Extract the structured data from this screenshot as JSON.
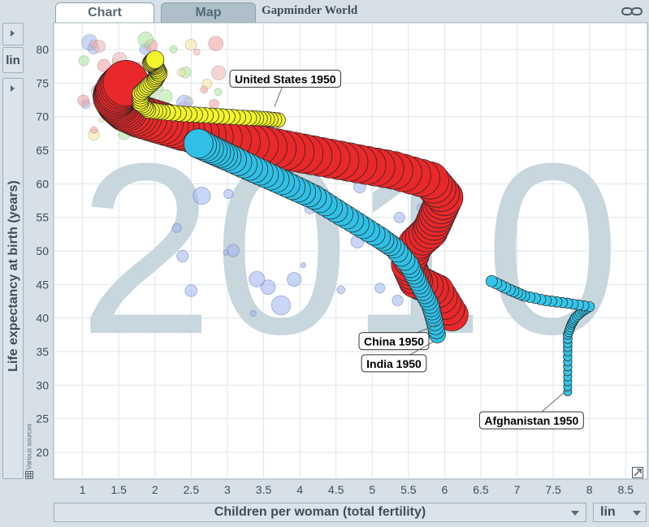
{
  "tabs": [
    {
      "label": "Chart",
      "active": true
    },
    {
      "label": "Map",
      "active": false
    }
  ],
  "app_title": "Gapminder World",
  "y_axis": {
    "title": "Life expectancy at birth (years)",
    "scale": "lin"
  },
  "x_axis": {
    "title": "Children per woman (total fertility)",
    "scale": "lin"
  },
  "source_note": "Various sources",
  "watermark_year": "2010",
  "icons": {
    "link": "link-icon",
    "table": "table-icon",
    "resize": "resize-icon"
  },
  "chart_data": {
    "type": "scatter",
    "xlim": [
      0.6,
      8.8
    ],
    "ylim": [
      16,
      84
    ],
    "x_ticks": [
      "1",
      "1.5",
      "2",
      "2.5",
      "3",
      "3.5",
      "4",
      "4.5",
      "5",
      "5.5",
      "6",
      "6.5",
      "7",
      "7.5",
      "8",
      "8.5"
    ],
    "y_ticks": [
      "20",
      "25",
      "30",
      "35",
      "40",
      "45",
      "50",
      "55",
      "60",
      "65",
      "70",
      "75",
      "80"
    ],
    "grid": true,
    "trails": [
      {
        "label": "China 1950",
        "color": "#e8282a",
        "points": [
          [
            6.1,
            40.5
          ],
          [
            5.9,
            44
          ],
          [
            5.6,
            45.5
          ],
          [
            5.5,
            48
          ],
          [
            5.6,
            51
          ],
          [
            5.8,
            53
          ],
          [
            5.9,
            55.5
          ],
          [
            6.0,
            58
          ],
          [
            5.8,
            60.5
          ],
          [
            5.3,
            62
          ],
          [
            4.8,
            63
          ],
          [
            4.3,
            64
          ],
          [
            3.8,
            65
          ],
          [
            3.3,
            66
          ],
          [
            2.8,
            67
          ],
          [
            2.4,
            68
          ],
          [
            2.1,
            69
          ],
          [
            1.8,
            70
          ],
          [
            1.6,
            71
          ],
          [
            1.5,
            72
          ],
          [
            1.45,
            73
          ],
          [
            1.5,
            74
          ],
          [
            1.6,
            75
          ]
        ],
        "size_start": 20,
        "size_end": 28
      },
      {
        "label": "India 1950",
        "color": "#30c0e6",
        "points": [
          [
            5.9,
            37.5
          ],
          [
            5.85,
            40
          ],
          [
            5.8,
            42
          ],
          [
            5.7,
            44
          ],
          [
            5.6,
            46
          ],
          [
            5.5,
            48
          ],
          [
            5.3,
            50.5
          ],
          [
            5.1,
            52
          ],
          [
            4.8,
            54
          ],
          [
            4.5,
            56
          ],
          [
            4.2,
            58
          ],
          [
            3.9,
            59.5
          ],
          [
            3.6,
            61
          ],
          [
            3.3,
            62.5
          ],
          [
            3.0,
            64
          ],
          [
            2.8,
            65
          ],
          [
            2.6,
            66
          ]
        ],
        "size_start": 10,
        "size_end": 18
      },
      {
        "label": "United States 1950",
        "color": "#f1f52a",
        "points": [
          [
            3.7,
            69.5
          ],
          [
            3.5,
            69.7
          ],
          [
            3.3,
            69.8
          ],
          [
            3.0,
            70
          ],
          [
            2.7,
            70.2
          ],
          [
            2.4,
            70.4
          ],
          [
            2.1,
            70.7
          ],
          [
            1.9,
            71
          ],
          [
            1.8,
            72
          ],
          [
            1.8,
            73.5
          ],
          [
            1.9,
            74.5
          ],
          [
            2.0,
            75.5
          ],
          [
            2.05,
            76.5
          ],
          [
            2.0,
            77.5
          ],
          [
            1.95,
            78
          ],
          [
            2.0,
            78.5
          ]
        ],
        "size_start": 9,
        "size_end": 11
      },
      {
        "label": "Afghanistan 1950",
        "color": "#34c6ea",
        "points": [
          [
            7.7,
            29
          ],
          [
            7.7,
            32
          ],
          [
            7.7,
            35
          ],
          [
            7.7,
            37.5
          ],
          [
            7.75,
            39
          ],
          [
            7.8,
            40
          ],
          [
            7.9,
            41
          ],
          [
            8.0,
            41.7
          ],
          [
            7.7,
            42.2
          ],
          [
            7.4,
            42.6
          ],
          [
            7.1,
            43.3
          ],
          [
            6.9,
            44.2
          ],
          [
            6.65,
            45.5
          ]
        ],
        "size_start": 5,
        "size_end": 7
      }
    ],
    "annotations": [
      {
        "text": "United States 1950",
        "x": 3.8,
        "y": 75.6,
        "point": [
          3.65,
          71.5
        ]
      },
      {
        "text": "China 1950",
        "x": 5.3,
        "y": 36.5,
        "point": [
          5.9,
          39
        ]
      },
      {
        "text": "India 1950",
        "x": 5.3,
        "y": 33.2,
        "point": [
          5.85,
          36.5
        ]
      },
      {
        "text": "Afghanistan 1950",
        "x": 7.2,
        "y": 24.7,
        "point": [
          7.68,
          29.2
        ]
      }
    ]
  }
}
